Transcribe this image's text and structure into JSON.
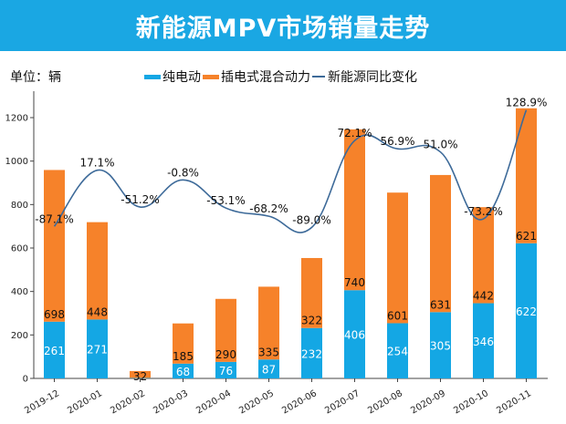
{
  "header": {
    "title": "新能源MPV市场销量走势"
  },
  "unit_label": "单位：辆",
  "colors": {
    "header_bg": "#1aa7e3",
    "ev": "#14a7e4",
    "phev": "#f6822a",
    "line": "#3d6a99"
  },
  "legend": [
    {
      "label": "纯电动",
      "kind": "bar",
      "color": "#14a7e4"
    },
    {
      "label": "插电式混合动力",
      "kind": "bar",
      "color": "#f6822a"
    },
    {
      "label": "新能源同比变化",
      "kind": "line",
      "color": "#3d6a99"
    }
  ],
  "chart_data": {
    "type": "bar",
    "stacked": true,
    "title": "新能源MPV市场销量走势",
    "xlabel": "",
    "ylabel": "单位：辆",
    "ylim": [
      0,
      1300
    ],
    "yticks": [
      0,
      200,
      400,
      600,
      800,
      1000,
      1200
    ],
    "grid": false,
    "legend_position": "top",
    "categories": [
      "2019-12",
      "2020-01",
      "2020-02",
      "2020-03",
      "2020-04",
      "2020-05",
      "2020-06",
      "2020-07",
      "2020-08",
      "2020-09",
      "2020-10",
      "2020-11"
    ],
    "series": [
      {
        "name": "纯电动",
        "type": "bar",
        "values": [
          261,
          271,
          2,
          68,
          76,
          87,
          232,
          406,
          254,
          305,
          346,
          622
        ],
        "labels": [
          "261",
          "271",
          "",
          "68",
          "76",
          "87",
          "232",
          "406",
          "254",
          "305",
          "346",
          "622"
        ]
      },
      {
        "name": "插电式混合动力",
        "type": "bar",
        "values": [
          698,
          448,
          32,
          185,
          290,
          335,
          322,
          740,
          601,
          631,
          442,
          621
        ],
        "labels": [
          "698",
          "448",
          "32",
          "185",
          "290",
          "335",
          "322",
          "740",
          "601",
          "631",
          "442",
          "621"
        ]
      },
      {
        "name": "新能源同比变化",
        "type": "line",
        "smooth": true,
        "values": [
          -87.1,
          17.1,
          -51.2,
          -0.8,
          -53.1,
          -68.2,
          -89.0,
          72.1,
          56.9,
          51.0,
          -73.2,
          128.9
        ],
        "labels": [
          "-87.1%",
          "17.1%",
          "-51.2%",
          "-0.8%",
          "-53.1%",
          "-68.2%",
          "-89.0%",
          "72.1%",
          "56.9%",
          "51.0%",
          "-73.2%",
          "128.9%"
        ]
      }
    ]
  }
}
